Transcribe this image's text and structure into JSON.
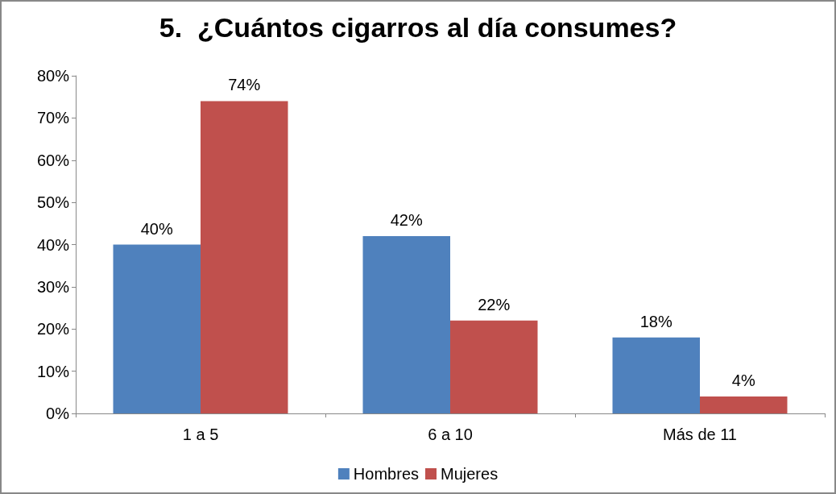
{
  "chart_data": {
    "type": "bar",
    "title": "5.  ¿Cuántos cigarros al día consumes?",
    "categories": [
      "1 a 5",
      "6 a 10",
      "Más de 11"
    ],
    "series": [
      {
        "name": "Hombres",
        "color": "#4f81bd",
        "values": [
          40,
          42,
          18
        ],
        "value_labels": [
          "40%",
          "42%",
          "18%"
        ]
      },
      {
        "name": "Mujeres",
        "color": "#c0504d",
        "values": [
          74,
          22,
          4
        ],
        "value_labels": [
          "74%",
          "22%",
          "4%"
        ]
      }
    ],
    "ylim": [
      0,
      80
    ],
    "yticks": [
      {
        "value": 0,
        "label": "0%"
      },
      {
        "value": 10,
        "label": "10%"
      },
      {
        "value": 20,
        "label": "20%"
      },
      {
        "value": 30,
        "label": "30%"
      },
      {
        "value": 40,
        "label": "40%"
      },
      {
        "value": 50,
        "label": "50%"
      },
      {
        "value": 60,
        "label": "60%"
      },
      {
        "value": 70,
        "label": "70%"
      },
      {
        "value": 80,
        "label": "80%"
      }
    ],
    "grid": false,
    "legend": "bottom"
  }
}
